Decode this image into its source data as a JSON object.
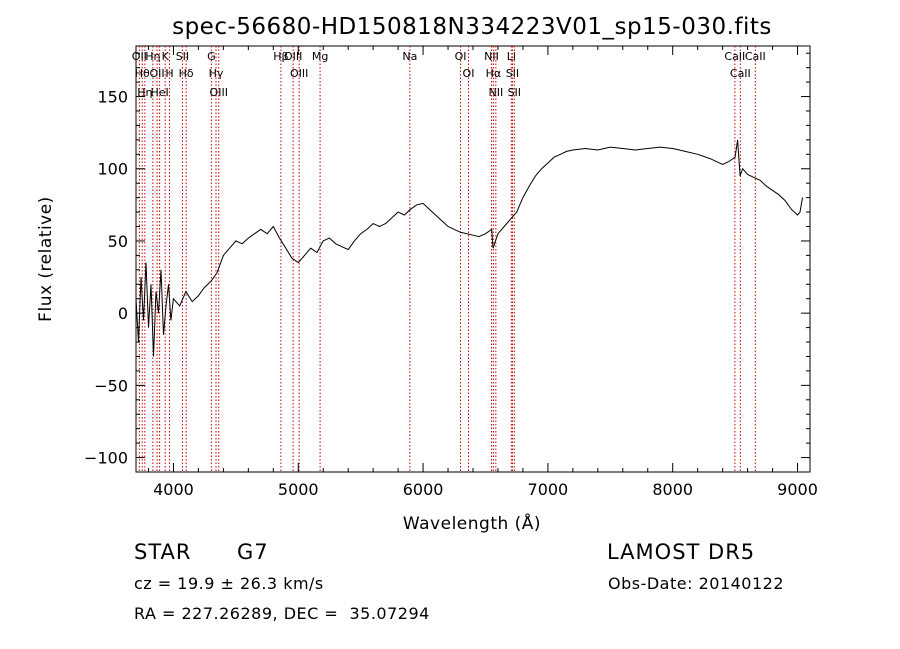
{
  "chart_data": {
    "type": "line",
    "title": "spec-56680-HD150818N334223V01_sp15-030.fits",
    "xlabel": "Wavelength (Å)",
    "ylabel": "Flux (relative)",
    "xlim": [
      3700,
      9100
    ],
    "ylim": [
      -110,
      185
    ],
    "xticks": [
      4000,
      5000,
      6000,
      7000,
      8000,
      9000
    ],
    "yticks": [
      -100,
      -50,
      0,
      50,
      100,
      150
    ],
    "grid": false,
    "line_color": "#000000",
    "marker_color": "#cc0000",
    "series": [
      {
        "x": [
          3700,
          3720,
          3740,
          3760,
          3780,
          3800,
          3820,
          3840,
          3860,
          3880,
          3900,
          3920,
          3940,
          3960,
          3980,
          4000,
          4050,
          4100,
          4150,
          4200,
          4250,
          4300,
          4350,
          4400,
          4450,
          4500,
          4550,
          4600,
          4650,
          4700,
          4750,
          4800,
          4850,
          4900,
          4950,
          5000,
          5050,
          5100,
          5150,
          5200,
          5250,
          5300,
          5350,
          5400,
          5450,
          5500,
          5550,
          5600,
          5650,
          5700,
          5750,
          5800,
          5850,
          5900,
          5950,
          6000,
          6050,
          6100,
          6150,
          6200,
          6250,
          6300,
          6350,
          6400,
          6450,
          6500,
          6550,
          6560,
          6600,
          6650,
          6700,
          6750,
          6800,
          6850,
          6900,
          6950,
          7000,
          7050,
          7100,
          7150,
          7200,
          7300,
          7400,
          7500,
          7600,
          7700,
          7800,
          7900,
          8000,
          8100,
          8200,
          8300,
          8400,
          8450,
          8500,
          8520,
          8540,
          8560,
          8600,
          8650,
          8700,
          8750,
          8800,
          8850,
          8900,
          8950,
          9000,
          9020,
          9040
        ],
        "y": [
          10,
          -20,
          25,
          -5,
          35,
          -10,
          20,
          -30,
          15,
          0,
          30,
          -15,
          5,
          20,
          -5,
          10,
          5,
          15,
          8,
          12,
          18,
          22,
          28,
          40,
          45,
          50,
          48,
          52,
          55,
          58,
          55,
          60,
          52,
          45,
          38,
          35,
          40,
          45,
          42,
          50,
          52,
          48,
          46,
          44,
          50,
          55,
          58,
          62,
          60,
          62,
          66,
          70,
          68,
          72,
          75,
          76,
          72,
          68,
          64,
          60,
          58,
          56,
          55,
          54,
          53,
          55,
          58,
          45,
          55,
          60,
          65,
          70,
          80,
          88,
          95,
          100,
          104,
          108,
          110,
          112,
          113,
          114,
          113,
          115,
          114,
          113,
          114,
          115,
          114,
          112,
          110,
          107,
          103,
          105,
          108,
          120,
          95,
          100,
          96,
          94,
          92,
          88,
          85,
          82,
          78,
          72,
          68,
          70,
          80
        ]
      }
    ],
    "lines": [
      {
        "x": 3727,
        "label": "OII"
      },
      {
        "x": 3750,
        "label": "Hθ"
      },
      {
        "x": 3771,
        "label": "Hη"
      },
      {
        "x": 3835,
        "label": "Hη"
      },
      {
        "x": 3869,
        "label": "OII"
      },
      {
        "x": 3889,
        "label": "HeI"
      },
      {
        "x": 3934,
        "label": "K"
      },
      {
        "x": 3969,
        "label": "H"
      },
      {
        "x": 4072,
        "label": "SII"
      },
      {
        "x": 4102,
        "label": "Hδ"
      },
      {
        "x": 4304,
        "label": "G"
      },
      {
        "x": 4341,
        "label": "Hγ"
      },
      {
        "x": 4363,
        "label": "OIII"
      },
      {
        "x": 4861,
        "label": "Hβ"
      },
      {
        "x": 4959,
        "label": "OIII"
      },
      {
        "x": 5007,
        "label": "OIII"
      },
      {
        "x": 5175,
        "label": "Mg"
      },
      {
        "x": 5894,
        "label": "Na"
      },
      {
        "x": 6300,
        "label": "OI"
      },
      {
        "x": 6364,
        "label": "OI"
      },
      {
        "x": 6548,
        "label": "NII"
      },
      {
        "x": 6563,
        "label": "Hα"
      },
      {
        "x": 6583,
        "label": "NII"
      },
      {
        "x": 6707,
        "label": "Li"
      },
      {
        "x": 6716,
        "label": "SII"
      },
      {
        "x": 6731,
        "label": "SII"
      },
      {
        "x": 8498,
        "label": "CaII"
      },
      {
        "x": 8542,
        "label": "CaII"
      },
      {
        "x": 8662,
        "label": "CaII"
      }
    ]
  },
  "info": {
    "object_class": "STAR",
    "subclass": "G7",
    "survey": "LAMOST DR5",
    "redshift_text": "cz = 19.9 ± 26.3 km/s",
    "obs_date": "Obs-Date: 20140122",
    "coords": "RA = 227.26289, DEC =  35.07294"
  }
}
